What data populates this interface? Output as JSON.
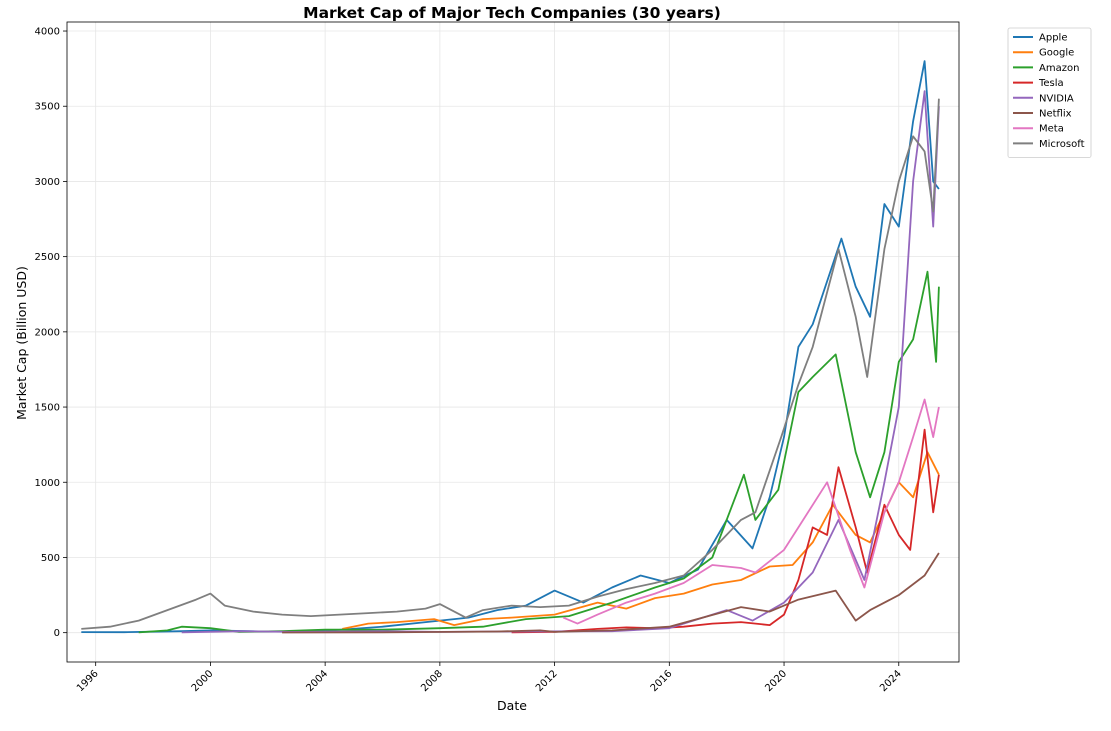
{
  "chart_data": {
    "type": "line",
    "title": "Market Cap of Major Tech Companies (30 years)",
    "xlabel": "Date",
    "ylabel": "Market Cap (Billion USD)",
    "xlim": [
      1995.0,
      2026.1
    ],
    "ylim": [
      -195,
      4060
    ],
    "x_ticks": [
      1996,
      2000,
      2004,
      2008,
      2012,
      2016,
      2020,
      2024
    ],
    "y_ticks": [
      0,
      500,
      1000,
      1500,
      2000,
      2500,
      3000,
      3500,
      4000
    ],
    "grid": true,
    "legend_position": "outside-top-right",
    "series": [
      {
        "name": "Apple",
        "color": "#1f77b4",
        "points": [
          [
            1995.5,
            4
          ],
          [
            1997,
            3
          ],
          [
            1999,
            10
          ],
          [
            2000,
            15
          ],
          [
            2002,
            7
          ],
          [
            2004,
            12
          ],
          [
            2006,
            40
          ],
          [
            2008,
            80
          ],
          [
            2009,
            100
          ],
          [
            2010,
            150
          ],
          [
            2011,
            180
          ],
          [
            2012,
            280
          ],
          [
            2013,
            200
          ],
          [
            2014,
            300
          ],
          [
            2015,
            380
          ],
          [
            2016,
            330
          ],
          [
            2017,
            420
          ],
          [
            2018,
            750
          ],
          [
            2018.9,
            560
          ],
          [
            2019.5,
            900
          ],
          [
            2020,
            1300
          ],
          [
            2020.5,
            1900
          ],
          [
            2021,
            2050
          ],
          [
            2022,
            2620
          ],
          [
            2022.5,
            2300
          ],
          [
            2023,
            2100
          ],
          [
            2023.5,
            2850
          ],
          [
            2024,
            2700
          ],
          [
            2024.5,
            3400
          ],
          [
            2024.9,
            3800
          ],
          [
            2025.2,
            3000
          ],
          [
            2025.4,
            2950
          ]
        ]
      },
      {
        "name": "Google",
        "color": "#ff7f0e",
        "points": [
          [
            2004.6,
            25
          ],
          [
            2005.5,
            60
          ],
          [
            2006.5,
            70
          ],
          [
            2007.8,
            90
          ],
          [
            2008.5,
            50
          ],
          [
            2009.5,
            90
          ],
          [
            2010.5,
            100
          ],
          [
            2012,
            120
          ],
          [
            2013.5,
            200
          ],
          [
            2014.5,
            160
          ],
          [
            2015.5,
            230
          ],
          [
            2016.5,
            260
          ],
          [
            2017.5,
            320
          ],
          [
            2018.5,
            350
          ],
          [
            2019.5,
            440
          ],
          [
            2020.3,
            450
          ],
          [
            2021,
            600
          ],
          [
            2021.7,
            850
          ],
          [
            2022.5,
            650
          ],
          [
            2023,
            600
          ],
          [
            2023.5,
            800
          ],
          [
            2024,
            1000
          ],
          [
            2024.5,
            900
          ],
          [
            2025,
            1200
          ],
          [
            2025.4,
            1050
          ]
        ]
      },
      {
        "name": "Amazon",
        "color": "#2ca02c",
        "points": [
          [
            1997.5,
            2
          ],
          [
            1998.5,
            15
          ],
          [
            1999,
            40
          ],
          [
            2000,
            30
          ],
          [
            2001,
            5
          ],
          [
            2002.5,
            10
          ],
          [
            2004,
            20
          ],
          [
            2006,
            20
          ],
          [
            2008,
            30
          ],
          [
            2009.5,
            40
          ],
          [
            2011,
            90
          ],
          [
            2012.5,
            110
          ],
          [
            2014,
            200
          ],
          [
            2015.5,
            300
          ],
          [
            2016.5,
            360
          ],
          [
            2017.5,
            500
          ],
          [
            2018.6,
            1050
          ],
          [
            2019,
            750
          ],
          [
            2019.8,
            950
          ],
          [
            2020.5,
            1600
          ],
          [
            2021,
            1700
          ],
          [
            2021.8,
            1850
          ],
          [
            2022.5,
            1200
          ],
          [
            2023,
            900
          ],
          [
            2023.5,
            1200
          ],
          [
            2024,
            1800
          ],
          [
            2024.5,
            1950
          ],
          [
            2025,
            2400
          ],
          [
            2025.3,
            1800
          ],
          [
            2025.4,
            2300
          ]
        ]
      },
      {
        "name": "Tesla",
        "color": "#d62728",
        "points": [
          [
            2010.5,
            2
          ],
          [
            2012,
            5
          ],
          [
            2013.5,
            25
          ],
          [
            2014.5,
            35
          ],
          [
            2015.5,
            30
          ],
          [
            2016.5,
            40
          ],
          [
            2017.5,
            60
          ],
          [
            2018.5,
            70
          ],
          [
            2019.5,
            50
          ],
          [
            2020,
            120
          ],
          [
            2020.5,
            350
          ],
          [
            2021,
            700
          ],
          [
            2021.5,
            650
          ],
          [
            2021.9,
            1100
          ],
          [
            2022.5,
            700
          ],
          [
            2022.9,
            400
          ],
          [
            2023.5,
            850
          ],
          [
            2024,
            650
          ],
          [
            2024.4,
            550
          ],
          [
            2024.9,
            1350
          ],
          [
            2025.2,
            800
          ],
          [
            2025.4,
            1050
          ]
        ]
      },
      {
        "name": "NVIDIA",
        "color": "#9467bd",
        "points": [
          [
            1999,
            2
          ],
          [
            2001,
            10
          ],
          [
            2003,
            5
          ],
          [
            2006,
            10
          ],
          [
            2008,
            5
          ],
          [
            2010,
            8
          ],
          [
            2014,
            10
          ],
          [
            2016,
            30
          ],
          [
            2018,
            150
          ],
          [
            2018.9,
            80
          ],
          [
            2020,
            200
          ],
          [
            2021,
            400
          ],
          [
            2021.9,
            750
          ],
          [
            2022.8,
            350
          ],
          [
            2023.5,
            1000
          ],
          [
            2024,
            1500
          ],
          [
            2024.5,
            3000
          ],
          [
            2024.9,
            3600
          ],
          [
            2025.2,
            2700
          ],
          [
            2025.4,
            3500
          ]
        ]
      },
      {
        "name": "Netflix",
        "color": "#8c564b",
        "points": [
          [
            2002.5,
            1
          ],
          [
            2006,
            2
          ],
          [
            2010,
            8
          ],
          [
            2011.5,
            15
          ],
          [
            2012,
            5
          ],
          [
            2014,
            15
          ],
          [
            2016,
            40
          ],
          [
            2018.5,
            170
          ],
          [
            2019.5,
            140
          ],
          [
            2020.5,
            220
          ],
          [
            2021.8,
            280
          ],
          [
            2022.5,
            80
          ],
          [
            2023,
            150
          ],
          [
            2024,
            250
          ],
          [
            2024.9,
            380
          ],
          [
            2025.4,
            530
          ]
        ]
      },
      {
        "name": "Meta",
        "color": "#e377c2",
        "points": [
          [
            2012.3,
            100
          ],
          [
            2012.8,
            60
          ],
          [
            2013.5,
            120
          ],
          [
            2014.5,
            200
          ],
          [
            2015.5,
            260
          ],
          [
            2016.5,
            330
          ],
          [
            2017.5,
            450
          ],
          [
            2018.5,
            430
          ],
          [
            2019,
            400
          ],
          [
            2020,
            550
          ],
          [
            2020.5,
            700
          ],
          [
            2021.5,
            1000
          ],
          [
            2022.3,
            550
          ],
          [
            2022.8,
            300
          ],
          [
            2023.5,
            800
          ],
          [
            2024,
            1000
          ],
          [
            2024.5,
            1300
          ],
          [
            2024.9,
            1550
          ],
          [
            2025.2,
            1300
          ],
          [
            2025.4,
            1500
          ]
        ]
      },
      {
        "name": "Microsoft",
        "color": "#7f7f7f",
        "points": [
          [
            1995.5,
            25
          ],
          [
            1996.5,
            40
          ],
          [
            1997.5,
            80
          ],
          [
            1998.5,
            150
          ],
          [
            1999.5,
            220
          ],
          [
            2000,
            260
          ],
          [
            2000.5,
            180
          ],
          [
            2001.5,
            140
          ],
          [
            2002.5,
            120
          ],
          [
            2003.5,
            110
          ],
          [
            2004.5,
            120
          ],
          [
            2005.5,
            130
          ],
          [
            2006.5,
            140
          ],
          [
            2007.5,
            160
          ],
          [
            2008,
            190
          ],
          [
            2008.9,
            100
          ],
          [
            2009.5,
            150
          ],
          [
            2010.5,
            180
          ],
          [
            2011.5,
            170
          ],
          [
            2012.5,
            180
          ],
          [
            2013.5,
            240
          ],
          [
            2014.5,
            290
          ],
          [
            2015.5,
            330
          ],
          [
            2016.5,
            380
          ],
          [
            2017.5,
            550
          ],
          [
            2018.5,
            750
          ],
          [
            2019,
            800
          ],
          [
            2019.9,
            1300
          ],
          [
            2020.5,
            1650
          ],
          [
            2021,
            1900
          ],
          [
            2021.9,
            2550
          ],
          [
            2022.5,
            2100
          ],
          [
            2022.9,
            1700
          ],
          [
            2023.5,
            2550
          ],
          [
            2024,
            3000
          ],
          [
            2024.5,
            3300
          ],
          [
            2024.9,
            3200
          ],
          [
            2025.2,
            2800
          ],
          [
            2025.4,
            3550
          ]
        ]
      }
    ]
  }
}
